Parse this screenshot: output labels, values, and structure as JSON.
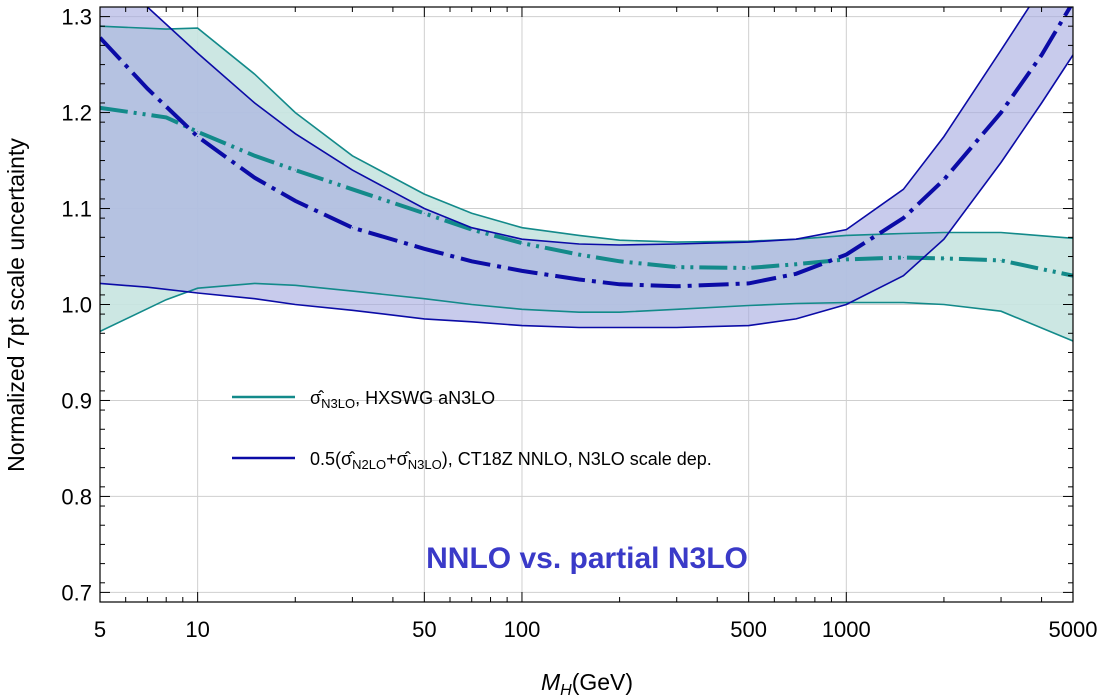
{
  "colors": {
    "teal": "#138a8a",
    "teal_fill": "#c6e4e0",
    "blue": "#0b0ba6",
    "blue_fill": "#a7abe0",
    "overlap_fill": "#a0b4d8",
    "annotation": "#3a3ac8",
    "grid": "#cfcfcf"
  },
  "chart_data": {
    "type": "line",
    "xlabel_main": "M",
    "xlabel_sub": "H",
    "xlabel_unit": "(GeV)",
    "ylabel": "Normalized 7pt scale uncertainty",
    "x_scale": "log",
    "xlim": [
      5,
      5000
    ],
    "ylim": [
      0.69,
      1.31
    ],
    "grid": true,
    "x_ticks": [
      {
        "value": 5,
        "label": "5"
      },
      {
        "value": 10,
        "label": "10"
      },
      {
        "value": 50,
        "label": "50"
      },
      {
        "value": 100,
        "label": "100"
      },
      {
        "value": 500,
        "label": "500"
      },
      {
        "value": 1000,
        "label": "1000"
      },
      {
        "value": 5000,
        "label": "5000"
      }
    ],
    "y_ticks": [
      {
        "value": 0.7,
        "label": "0.7"
      },
      {
        "value": 0.8,
        "label": "0.8"
      },
      {
        "value": 0.9,
        "label": "0.9"
      },
      {
        "value": 1.0,
        "label": "1.0"
      },
      {
        "value": 1.1,
        "label": "1.1"
      },
      {
        "value": 1.2,
        "label": "1.2"
      },
      {
        "value": 1.3,
        "label": "1.3"
      }
    ],
    "annotation": "NNLO vs. partial N3LO",
    "legend_placement": "center-left",
    "series": [
      {
        "legend_label": "σ̂N3LO, HXSWG aN3LO",
        "legend_sigma": "σ̂",
        "legend_sub": "N3LO",
        "legend_rest": ", HXSWG aN3LO",
        "color_key": "teal",
        "fill_key": "teal_fill",
        "x": [
          5,
          8,
          10,
          15,
          20,
          30,
          50,
          70,
          100,
          150,
          200,
          300,
          500,
          700,
          1000,
          1500,
          2000,
          3000,
          5000
        ],
        "central": [
          1.205,
          1.195,
          1.18,
          1.155,
          1.14,
          1.12,
          1.095,
          1.078,
          1.064,
          1.052,
          1.045,
          1.039,
          1.038,
          1.042,
          1.047,
          1.049,
          1.048,
          1.046,
          1.03
        ],
        "upper": [
          1.29,
          1.287,
          1.288,
          1.24,
          1.2,
          1.155,
          1.115,
          1.095,
          1.08,
          1.072,
          1.067,
          1.065,
          1.066,
          1.068,
          1.072,
          1.074,
          1.075,
          1.075,
          1.069
        ],
        "lower": [
          0.972,
          1.005,
          1.017,
          1.022,
          1.02,
          1.014,
          1.006,
          1.0,
          0.995,
          0.992,
          0.992,
          0.995,
          0.999,
          1.001,
          1.002,
          1.002,
          1.0,
          0.993,
          0.962
        ]
      },
      {
        "legend_label": "0.5(σ̂N2LO+σ̂N3LO), CT18Z NNLO, N3LO scale dep.",
        "legend_prefix": "0.5(",
        "legend_sigma": "σ̂",
        "legend_sub1": "N2LO",
        "legend_plus": "+",
        "legend_sub2": "N3LO",
        "legend_rest": "), CT18Z NNLO, N3LO scale dep.",
        "color_key": "blue",
        "fill_key": "blue_fill",
        "x": [
          5,
          7,
          10,
          15,
          20,
          30,
          50,
          70,
          100,
          150,
          200,
          300,
          500,
          700,
          1000,
          1500,
          2000,
          3000,
          4000,
          5000
        ],
        "central": [
          1.278,
          1.225,
          1.175,
          1.132,
          1.108,
          1.08,
          1.058,
          1.045,
          1.035,
          1.026,
          1.021,
          1.019,
          1.022,
          1.032,
          1.052,
          1.09,
          1.13,
          1.2,
          1.26,
          1.315
        ],
        "upper": [
          1.34,
          1.31,
          1.262,
          1.21,
          1.178,
          1.14,
          1.1,
          1.08,
          1.068,
          1.063,
          1.062,
          1.063,
          1.065,
          1.068,
          1.078,
          1.12,
          1.175,
          1.265,
          1.33,
          1.36
        ],
        "lower": [
          1.022,
          1.018,
          1.012,
          1.006,
          1.0,
          0.994,
          0.985,
          0.982,
          0.978,
          0.976,
          0.976,
          0.976,
          0.978,
          0.985,
          1.0,
          1.03,
          1.068,
          1.148,
          1.21,
          1.26
        ]
      }
    ]
  }
}
